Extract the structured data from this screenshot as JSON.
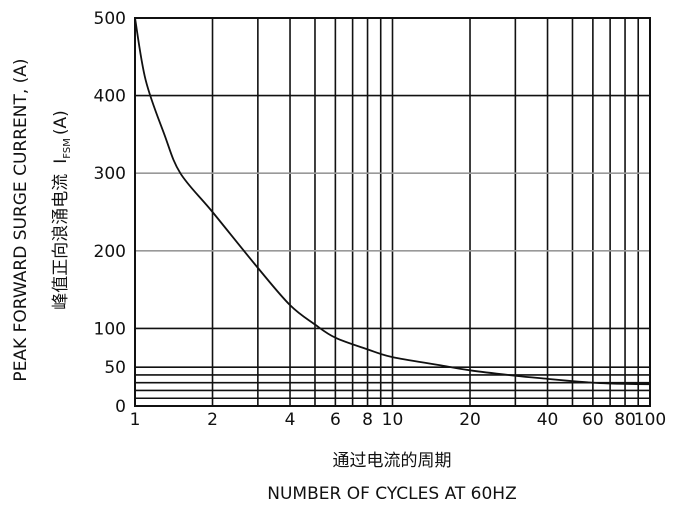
{
  "chart_data": {
    "type": "line",
    "x_scale": "log",
    "xlim": [
      1,
      100
    ],
    "x_ticks": [
      {
        "value": 1,
        "label": "1"
      },
      {
        "value": 2,
        "label": "2"
      },
      {
        "value": 4,
        "label": "4"
      },
      {
        "value": 6,
        "label": "6"
      },
      {
        "value": 8,
        "label": "8"
      },
      {
        "value": 10,
        "label": "10"
      },
      {
        "value": 20,
        "label": "20"
      },
      {
        "value": 40,
        "label": "40"
      },
      {
        "value": 60,
        "label": "60"
      },
      {
        "value": 80,
        "label": "80"
      },
      {
        "value": 100,
        "label": "100"
      }
    ],
    "x_gridlines": [
      1,
      2,
      3,
      4,
      5,
      6,
      7,
      8,
      9,
      10,
      20,
      30,
      40,
      50,
      60,
      70,
      80,
      90,
      100
    ],
    "y_ticks": [
      {
        "value": 0,
        "label": "0"
      },
      {
        "value": 50,
        "label": "50"
      },
      {
        "value": 100,
        "label": "100"
      },
      {
        "value": 200,
        "label": "200"
      },
      {
        "value": 300,
        "label": "300"
      },
      {
        "value": 400,
        "label": "400"
      },
      {
        "value": 500,
        "label": "500"
      }
    ],
    "y_gridlines_dark": [
      0,
      10,
      20,
      30,
      40,
      50,
      100,
      400
    ],
    "y_gridlines_light": [
      200,
      300
    ],
    "ylim": [
      0,
      500
    ],
    "xlabel_cn": "通过电流的周期",
    "xlabel": "NUMBER OF CYCLES AT 60HZ",
    "ylabel": "PEAK FORWARD SURGE CURRENT, (A)",
    "ylabel_cn": "峰值正向浪涌电流",
    "ylabel_symbol": "I",
    "ylabel_subscript": "FSM",
    "ylabel_unit": "(A)",
    "series": [
      {
        "x": [
          1,
          1.1,
          1.3,
          1.5,
          2,
          3,
          4,
          5,
          6,
          8,
          10,
          15,
          20,
          30,
          40,
          50,
          60,
          70,
          80,
          100
        ],
        "y": [
          500,
          420,
          350,
          300,
          250,
          178,
          130,
          105,
          88,
          73,
          63,
          53,
          46,
          39,
          35,
          32,
          30,
          29,
          28.5,
          28
        ]
      }
    ]
  }
}
